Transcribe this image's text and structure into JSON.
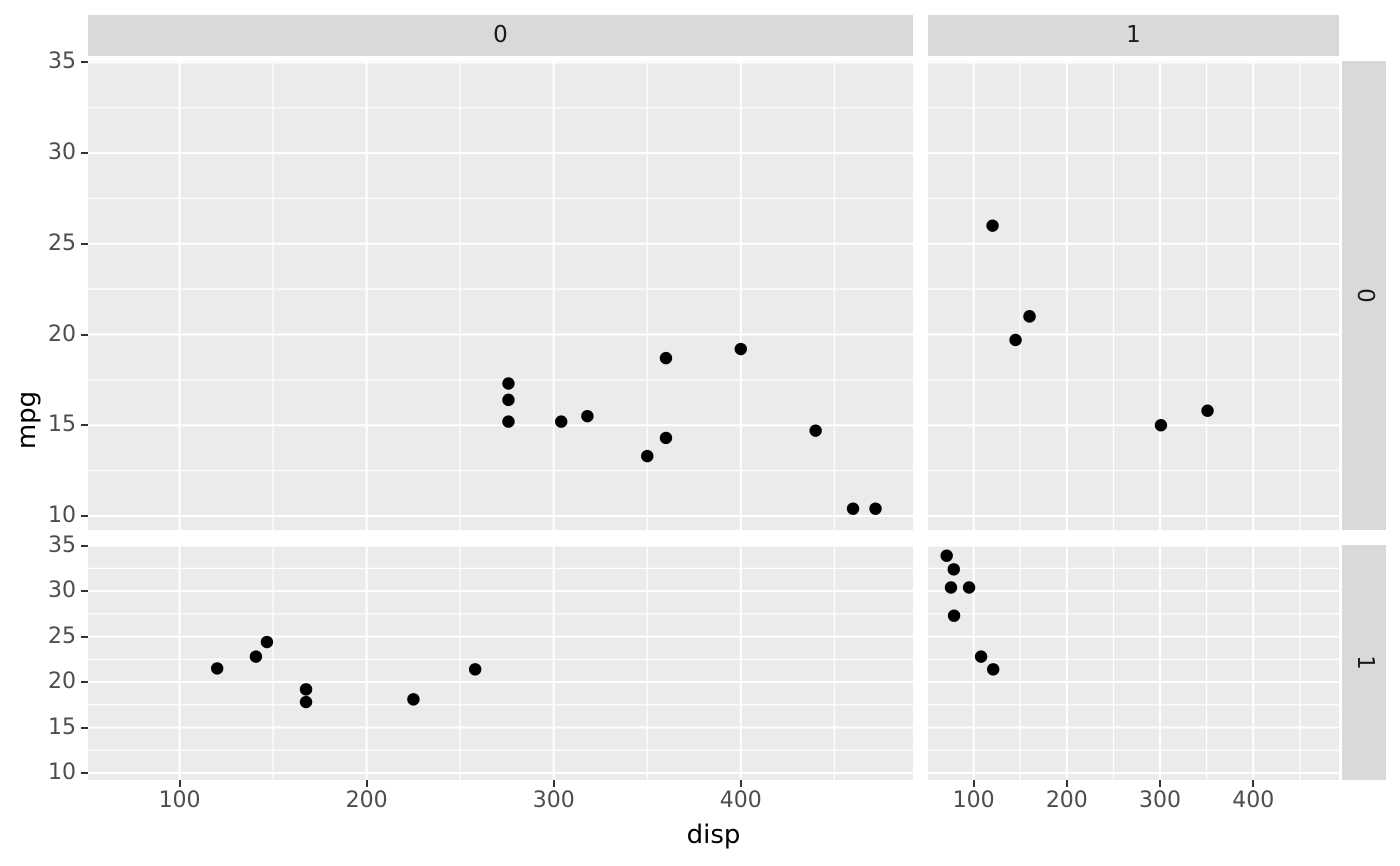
{
  "chart_data": {
    "type": "scatter",
    "title": "",
    "xlabel": "disp",
    "ylabel": "mpg",
    "facet_col_labels": [
      "0",
      "1"
    ],
    "facet_row_labels": [
      "0",
      "1"
    ],
    "x_domain": [
      51.05,
      492.05
    ],
    "y_domain": [
      9.225,
      35.075
    ],
    "x_major_ticks": [
      100,
      200,
      300,
      400
    ],
    "x_minor_ticks": [
      150,
      250,
      350,
      450
    ],
    "y_major_ticks": [
      10,
      15,
      20,
      25,
      30,
      35
    ],
    "y_minor_ticks": [
      12.5,
      17.5,
      22.5,
      27.5,
      32.5
    ],
    "x_tick_labels": [
      "100",
      "200",
      "300",
      "400"
    ],
    "y_tick_labels": [
      "10",
      "15",
      "20",
      "25",
      "30",
      "35"
    ],
    "grid": "on",
    "legend": "none",
    "panels": [
      {
        "row": "0",
        "col": "0",
        "points": [
          {
            "disp": 275.8,
            "mpg": 17.3
          },
          {
            "disp": 275.8,
            "mpg": 16.4
          },
          {
            "disp": 275.8,
            "mpg": 15.2
          },
          {
            "disp": 304.0,
            "mpg": 15.2
          },
          {
            "disp": 318.0,
            "mpg": 15.5
          },
          {
            "disp": 350.0,
            "mpg": 13.3
          },
          {
            "disp": 360.0,
            "mpg": 18.7
          },
          {
            "disp": 360.0,
            "mpg": 14.3
          },
          {
            "disp": 400.0,
            "mpg": 19.2
          },
          {
            "disp": 440.0,
            "mpg": 14.7
          },
          {
            "disp": 460.0,
            "mpg": 10.4
          },
          {
            "disp": 472.0,
            "mpg": 10.4
          }
        ]
      },
      {
        "row": "0",
        "col": "1",
        "points": [
          {
            "disp": 120.3,
            "mpg": 26.0
          },
          {
            "disp": 145.0,
            "mpg": 19.7
          },
          {
            "disp": 160.0,
            "mpg": 21.0
          },
          {
            "disp": 160.0,
            "mpg": 21.0
          },
          {
            "disp": 301.0,
            "mpg": 15.0
          },
          {
            "disp": 351.0,
            "mpg": 15.8
          }
        ]
      },
      {
        "row": "1",
        "col": "0",
        "points": [
          {
            "disp": 120.1,
            "mpg": 21.5
          },
          {
            "disp": 140.8,
            "mpg": 22.8
          },
          {
            "disp": 146.7,
            "mpg": 24.4
          },
          {
            "disp": 167.6,
            "mpg": 19.2
          },
          {
            "disp": 167.6,
            "mpg": 17.8
          },
          {
            "disp": 225.0,
            "mpg": 18.1
          },
          {
            "disp": 258.0,
            "mpg": 21.4
          }
        ]
      },
      {
        "row": "1",
        "col": "1",
        "points": [
          {
            "disp": 71.1,
            "mpg": 33.9
          },
          {
            "disp": 75.7,
            "mpg": 30.4
          },
          {
            "disp": 78.7,
            "mpg": 32.4
          },
          {
            "disp": 79.0,
            "mpg": 27.3
          },
          {
            "disp": 95.1,
            "mpg": 30.4
          },
          {
            "disp": 108.0,
            "mpg": 22.8
          },
          {
            "disp": 121.0,
            "mpg": 21.4
          }
        ]
      }
    ],
    "colors": {
      "panel_background": "#ebebeb",
      "strip_background": "#d9d9d9",
      "grid_major": "#ffffff",
      "grid_minor": "#ffffff",
      "point": "#000000",
      "tick_mark": "#333333",
      "tick_label": "#4d4d4d",
      "axis_title": "#000000",
      "strip_label": "#1a1a1a",
      "figure_background": "#ffffff"
    }
  }
}
